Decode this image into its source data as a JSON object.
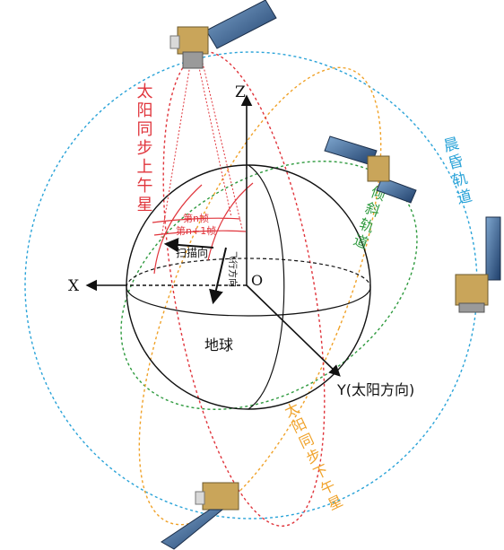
{
  "axes": {
    "x": "X",
    "y": "Y(太阳方向)",
    "z": "Z",
    "origin": "O"
  },
  "earth_label": "地球",
  "orbits": {
    "dawn_dusk": {
      "label": "晨昏轨道",
      "color": "#2aa3d8"
    },
    "inclined": {
      "label": "倾斜轨道",
      "color": "#2e9a3e"
    },
    "sun_sync_am": {
      "label": "太阳同步上午星",
      "color": "#e0353c"
    },
    "sun_sync_pm": {
      "label": "太阳同步下午星",
      "color": "#f0a229"
    }
  },
  "scan": {
    "frame_n": "第n帧",
    "frame_n1": "第n+1帧",
    "scan_dir": "扫描向",
    "flight_dir": "飞行方向"
  },
  "satellites": [
    "satellite-icon",
    "satellite-icon",
    "satellite-icon",
    "satellite-icon"
  ]
}
